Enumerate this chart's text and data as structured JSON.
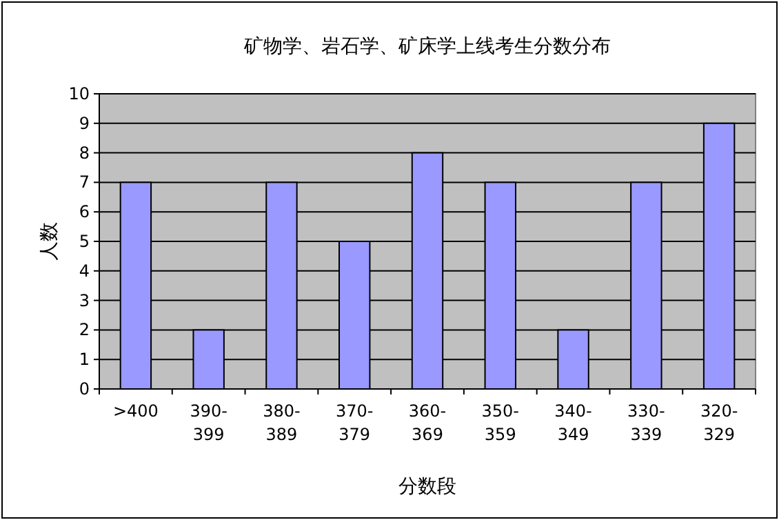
{
  "chart_data": {
    "type": "bar",
    "title": "矿物学、岩石学、矿床学上线考生分数分布",
    "xlabel": "分数段",
    "ylabel": "人数",
    "categories": [
      ">400",
      "390-399",
      "380-389",
      "370-379",
      "360-369",
      "350-359",
      "340-349",
      "330-339",
      "320-329"
    ],
    "values": [
      7,
      2,
      7,
      5,
      8,
      7,
      2,
      7,
      9
    ],
    "color": "#9999ff",
    "ylim": [
      0,
      10
    ],
    "yticks": [
      0,
      1,
      2,
      3,
      4,
      5,
      6,
      7,
      8,
      9,
      10
    ],
    "grid": "y"
  }
}
